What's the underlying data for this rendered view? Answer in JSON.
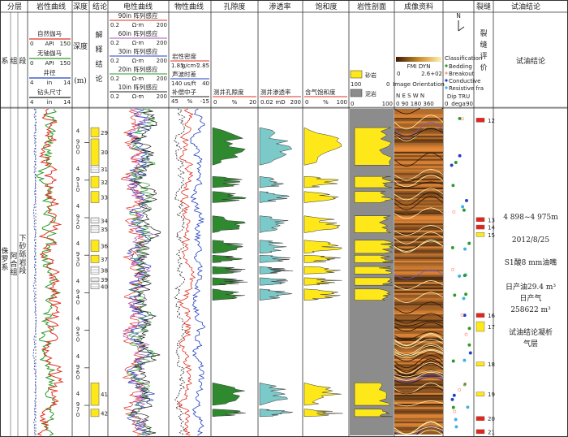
{
  "header": {
    "col_fenceng": "分层",
    "col_lithology_curve": "岩性曲线",
    "col_depth": "深度",
    "col_conclusion": "结论",
    "col_electric": "电性曲线",
    "col_physical": "物性曲线",
    "col_porosity": "孔隙度",
    "col_permeability": "渗透率",
    "col_saturation": "饱和度",
    "col_profile": "岩性剖面",
    "col_imaging": "成像资料",
    "col_fracture": "裂缝",
    "col_test": "试油结论",
    "sys": "系",
    "grp": "组",
    "seg": "段",
    "depth_label": "深度",
    "depth_unit": "(m)",
    "conclusion_vertical": "解释结论",
    "fracture_vertical": "裂缝评价",
    "test_header": "试油结论"
  },
  "lith_tracks": [
    {
      "name": "自然伽马",
      "unit": "API",
      "min": "0",
      "max": "150",
      "color": "#e03020"
    },
    {
      "name": "无铀伽马",
      "unit": "API",
      "min": "0",
      "max": "150",
      "color": "#2a9a2a"
    },
    {
      "name": "井径",
      "unit": "in",
      "min": "4",
      "max": "14",
      "color": "#2040c0"
    },
    {
      "name": "钻头尺寸",
      "unit": "in",
      "min": "4",
      "max": "14",
      "color": "#222222"
    }
  ],
  "elec_tracks": [
    {
      "name": "90in 阵列感应",
      "unit": "Ω·m",
      "min": "0.2",
      "max": "200",
      "color": "#e03020"
    },
    {
      "name": "60in 阵列感应",
      "unit": "Ω·m",
      "min": "0.2",
      "max": "200",
      "color": "#b050c0"
    },
    {
      "name": "30in 阵列感应",
      "unit": "Ω·m",
      "min": "0.2",
      "max": "200",
      "color": "#2040c0"
    },
    {
      "name": "20in 阵列感应",
      "unit": "Ω·m",
      "min": "0.2",
      "max": "200",
      "color": "#2a9a2a"
    },
    {
      "name": "10in 阵列感应",
      "unit": "Ω·m",
      "min": "0.2",
      "max": "200",
      "color": "#222222"
    }
  ],
  "phys_tracks": [
    {
      "name": "岩性密度",
      "unit": "g/cm³",
      "min": "1.85",
      "max": "2.85",
      "color": "#e03020"
    },
    {
      "name": "声波时差",
      "unit": "us/ft",
      "min": "140",
      "max": "40",
      "color": "#2040c0"
    },
    {
      "name": "补偿中子",
      "unit": "%",
      "min": "45",
      "max": "-15",
      "color": "#222222"
    }
  ],
  "porosity_track": {
    "name": "测井孔隙度",
    "unit": "%",
    "min": "0",
    "max": "20"
  },
  "perm_track": {
    "name": "测井渗透率",
    "unit": "mD",
    "min": "0.02",
    "max": "200"
  },
  "sat_track": {
    "name": "含气饱和度",
    "unit": "%",
    "min": "0",
    "max": "100"
  },
  "profile_track": {
    "legend1": "砂岩",
    "legend2": "泥岩",
    "min": "0",
    "max": "100",
    "left100": "100",
    "left0": "0"
  },
  "imaging_track": {
    "title1": "FMI DYN",
    "min1": "0",
    "max1": "2.6+02",
    "title2": "Image Orientation",
    "dirs": "N   E   S   W   N",
    "ticks": "0   90   180   360",
    "classification": "Classification",
    "legend": [
      "Bedding",
      "Breakout",
      "Conductive",
      "Resistive fra"
    ],
    "dip_title": "Dip TRU",
    "dip_min": "0",
    "dip_unit": "dega",
    "dip_max": "90"
  },
  "strata": {
    "system": "侏罗系",
    "formation": "阿合组",
    "segment": "下砂砾岩段"
  },
  "depth_ticks": [
    "4 900",
    "4 910",
    "4 920",
    "4 930",
    "4 940",
    "4 950",
    "4 960",
    "4 970"
  ],
  "layers": [
    "29",
    "30",
    "31",
    "32",
    "33",
    "34",
    "35",
    "36",
    "37",
    "38",
    "39",
    "40",
    "41",
    "42"
  ],
  "fracture_ids": [
    "12",
    "13",
    "14",
    "15",
    "16",
    "17",
    "18",
    "19",
    "20",
    "21"
  ],
  "test_result": {
    "interval": "4 898~4 975m",
    "date": "2012/8/25",
    "method": "S1酸8 mm油嘴",
    "oil": "日产油29.4 m³",
    "gas_label": "日产气",
    "gas_value": "258622 m³",
    "conclusion": "试油结论凝析气层"
  },
  "colors": {
    "gamma": "#e03020",
    "uranium_free": "#2a9a2a",
    "caliper": "#2040c0",
    "porosity_fill": "#2f8a2f",
    "perm_fill": "#7cc9c9",
    "sat_fill": "#ffe81a",
    "profile_bg": "#8c8c8c",
    "fracture_red": "#e8241a",
    "fracture_yellow": "#ffe81a"
  }
}
